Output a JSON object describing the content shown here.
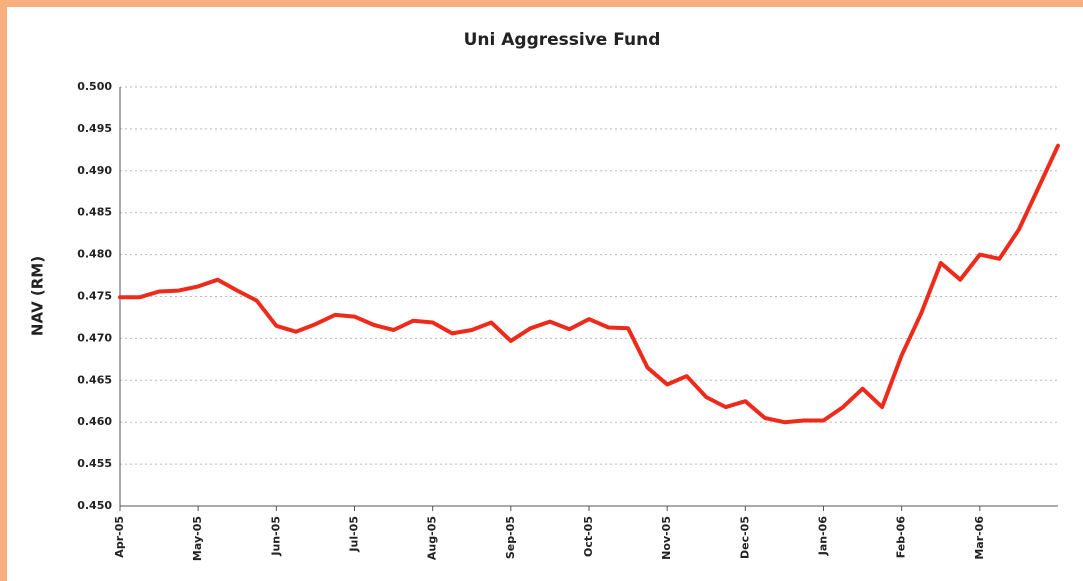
{
  "chart_data": {
    "type": "line",
    "title": "Uni Aggressive Fund",
    "ylabel": "NAV (RM)",
    "categories": [
      "Apr-05",
      null,
      null,
      null,
      "May-05",
      null,
      null,
      null,
      "Jun-05",
      null,
      null,
      null,
      "Jul-05",
      null,
      null,
      null,
      "Aug-05",
      null,
      null,
      null,
      "Sep-05",
      null,
      null,
      null,
      "Oct-05",
      null,
      null,
      null,
      "Nov-05",
      null,
      null,
      null,
      "Dec-05",
      null,
      null,
      null,
      "Jan-06",
      null,
      null,
      null,
      "Feb-06",
      null,
      null,
      null,
      "Mar-06",
      null,
      null,
      null,
      null
    ],
    "values": [
      0.4749,
      0.4749,
      0.4756,
      0.4757,
      0.4762,
      0.477,
      0.4757,
      0.4745,
      0.4715,
      0.4708,
      0.4717,
      0.4728,
      0.4726,
      0.4716,
      0.471,
      0.4721,
      0.4719,
      0.4706,
      0.471,
      0.4719,
      0.4697,
      0.4712,
      0.472,
      0.4711,
      0.4723,
      0.4713,
      0.4712,
      0.4665,
      0.4645,
      0.4655,
      0.463,
      0.4618,
      0.4625,
      0.4605,
      0.46,
      0.4602,
      0.4602,
      0.4618,
      0.464,
      0.4618,
      0.468,
      0.473,
      0.479,
      0.477,
      0.48,
      0.4795,
      0.483,
      0.488,
      0.493
    ],
    "color": "#ee2a1b",
    "ylim": [
      0.45,
      0.5
    ],
    "yticks": [
      {
        "value": 0.45,
        "label": "0.450"
      },
      {
        "value": 0.455,
        "label": "0.455"
      },
      {
        "value": 0.46,
        "label": "0.460"
      },
      {
        "value": 0.465,
        "label": "0.465"
      },
      {
        "value": 0.47,
        "label": "0.470"
      },
      {
        "value": 0.475,
        "label": "0.475"
      },
      {
        "value": 0.48,
        "label": "0.480"
      },
      {
        "value": 0.485,
        "label": "0.485"
      },
      {
        "value": 0.49,
        "label": "0.490"
      },
      {
        "value": 0.495,
        "label": "0.495"
      },
      {
        "value": 0.5,
        "label": "0.500"
      }
    ],
    "grid": true
  }
}
